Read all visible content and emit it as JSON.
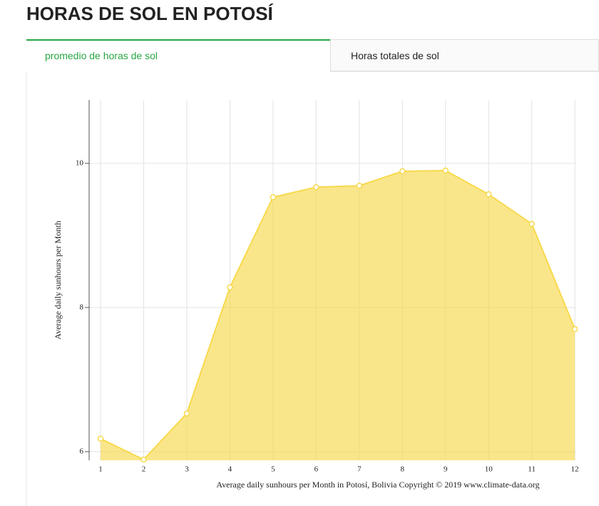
{
  "header": {
    "title": "HORAS DE SOL EN POTOSÍ"
  },
  "tabs": [
    {
      "label": "promedio de horas de sol",
      "active": true
    },
    {
      "label": "Horas totales de sol",
      "active": false
    }
  ],
  "chart_data": {
    "type": "area",
    "y_label": "Average daily sunhours per Month",
    "x_label": "Average daily sunhours per Month in Potosí, Bolivia Copyright © 2019 www.climate-data.org",
    "x": [
      1,
      2,
      3,
      4,
      5,
      6,
      7,
      8,
      9,
      10,
      11,
      12
    ],
    "values": [
      6.18,
      5.89,
      6.53,
      8.28,
      9.53,
      9.67,
      9.69,
      9.89,
      9.9,
      9.57,
      9.16,
      7.7
    ],
    "color": "#f7d94c",
    "xlim": [
      0.735,
      12.03
    ],
    "xticks": [
      1,
      2,
      3,
      4,
      5,
      6,
      7,
      8,
      9,
      10,
      11,
      12
    ],
    "ylim": [
      5.88,
      10.88
    ],
    "yticks": [
      6,
      8,
      10
    ],
    "grid": true
  }
}
